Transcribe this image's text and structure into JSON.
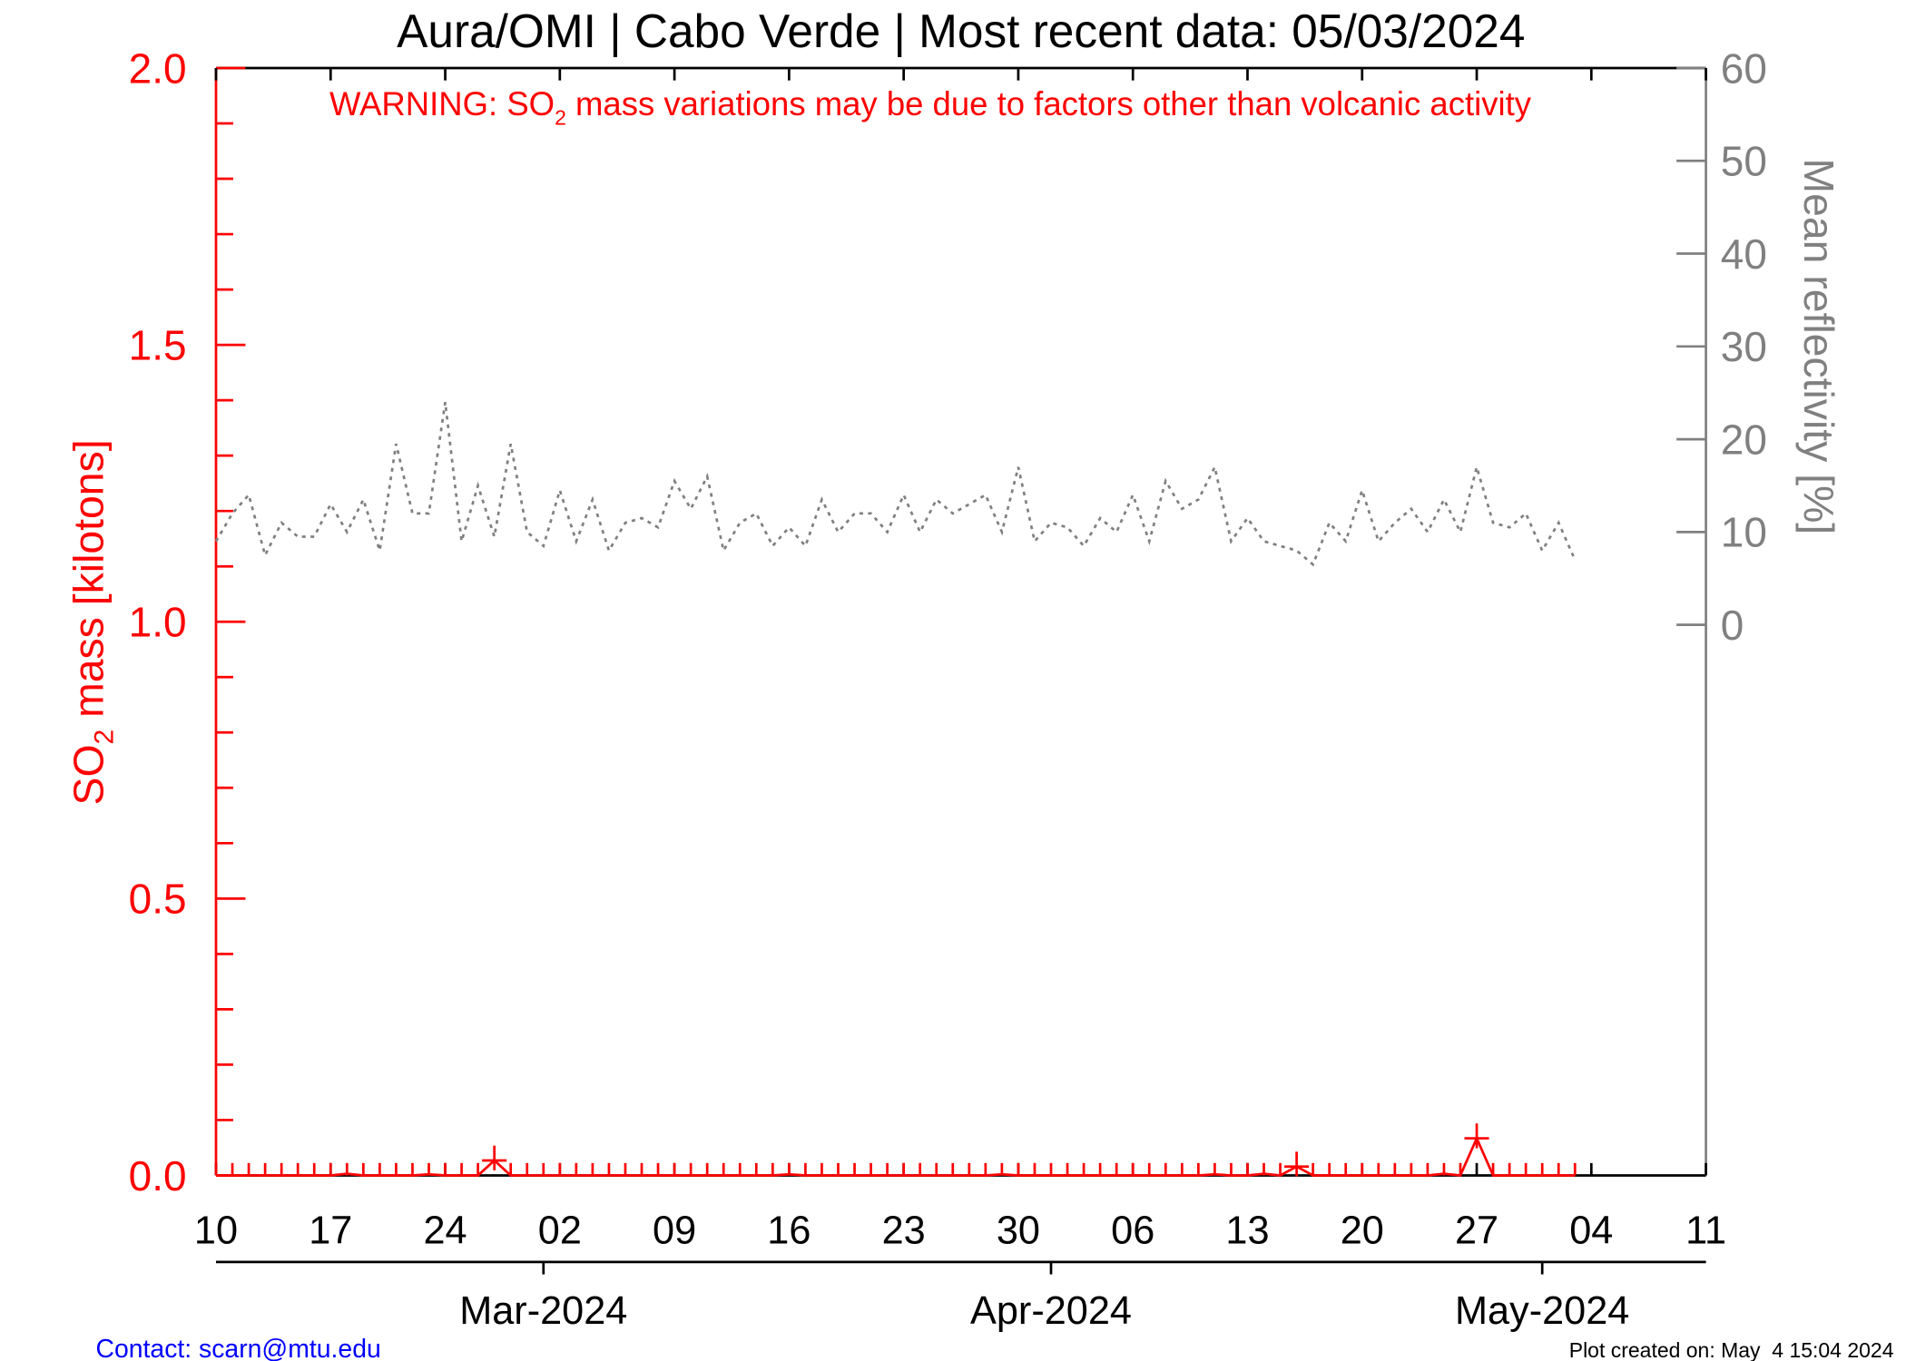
{
  "chart_data": {
    "type": "line",
    "title": "Aura/OMI | Cabo Verde | Most recent data: 05/03/2024",
    "warning": {
      "prefix": "WARNING: SO",
      "sub": "2",
      "suffix": " mass variations may be due to factors other than volcanic activity"
    },
    "ylabel_left": {
      "prefix": "SO",
      "sub": "2",
      "suffix": " mass [kilotons]"
    },
    "ylabel_right": "Mean reflectivity [%]",
    "ylim_left": [
      0,
      2.0
    ],
    "ylim_right": [
      0,
      60
    ],
    "yticks_left": [
      "0.0",
      "0.5",
      "1.0",
      "1.5",
      "2.0"
    ],
    "yticks_right": [
      "0",
      "10",
      "20",
      "30",
      "40",
      "50",
      "60"
    ],
    "xlim": [
      "2024-02-10",
      "2024-05-11"
    ],
    "xtick_labels": [
      "10",
      "17",
      "24",
      "02",
      "09",
      "16",
      "23",
      "30",
      "06",
      "13",
      "20",
      "27",
      "04",
      "11"
    ],
    "month_labels": [
      "Mar-2024",
      "Apr-2024",
      "May-2024"
    ],
    "start_date": "2024-02-10",
    "series": [
      {
        "name": "SO2 mass",
        "axis": "left",
        "color": "#ff0000",
        "values": [
          0,
          0,
          0,
          0,
          0,
          0,
          0,
          0,
          0.003,
          0,
          0,
          0,
          0,
          0.002,
          0,
          0,
          0,
          0.027,
          0,
          0,
          0,
          0,
          0,
          0,
          0,
          0,
          0,
          0,
          0,
          0,
          0,
          0,
          0,
          0,
          0,
          0.002,
          0,
          0,
          0,
          0,
          0,
          0,
          0,
          0,
          0,
          0,
          0,
          0,
          0.002,
          0,
          0,
          0,
          0,
          0,
          0,
          0,
          0,
          0,
          0,
          0,
          0,
          0.002,
          0,
          0,
          0.003,
          0,
          0.016,
          0,
          0,
          0,
          0,
          0,
          0,
          0,
          0,
          0.003,
          0,
          0.067,
          0,
          0,
          0,
          0,
          0,
          0
        ]
      },
      {
        "name": "Mean reflectivity",
        "axis": "right",
        "color": "#808080",
        "style": "dotted",
        "values": [
          9,
          12,
          14,
          7.5,
          11,
          9.5,
          9.5,
          13,
          10,
          13.5,
          8,
          19.5,
          12,
          12,
          24,
          9,
          15,
          9.5,
          19.5,
          10,
          8.5,
          14.5,
          9,
          13.5,
          8,
          11,
          11.5,
          10.5,
          15.5,
          12.5,
          16,
          8,
          11,
          12,
          8.5,
          10.5,
          8.5,
          13.5,
          10,
          12,
          12,
          10,
          14,
          10,
          13.5,
          12,
          13,
          14,
          10,
          17,
          9,
          11,
          10.5,
          8.5,
          11.5,
          10,
          14,
          9,
          15.5,
          12.5,
          13.5,
          17,
          9,
          11.5,
          9,
          8.5,
          8,
          6.5,
          11,
          9,
          14.5,
          9,
          11,
          12.5,
          10,
          13.5,
          10,
          17,
          11,
          10.5,
          12,
          8,
          11,
          7
        ]
      }
    ],
    "grid": false
  },
  "footer": {
    "contact": "Contact: scarn@mtu.edu",
    "created": "Plot created on: May  4 15:04 2024"
  },
  "colors": {
    "so2": "#ff0000",
    "reflectivity": "#808080",
    "contact": "#0000ff"
  }
}
